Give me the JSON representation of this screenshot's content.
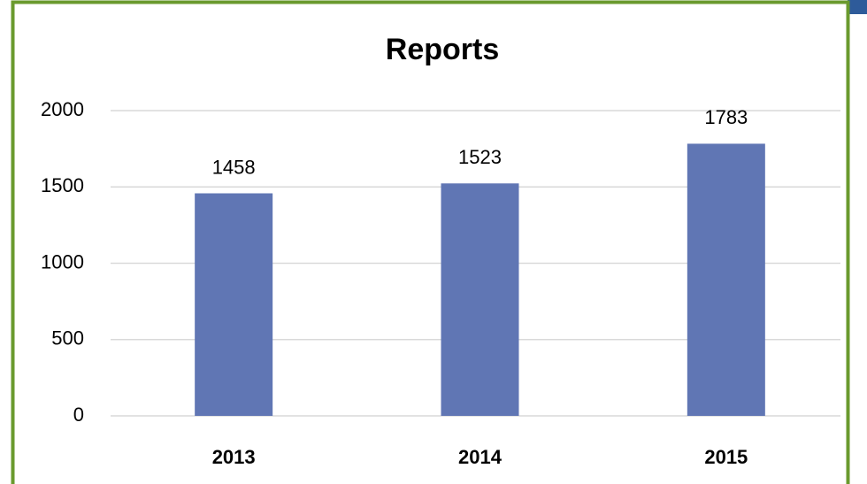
{
  "chart_data": {
    "type": "bar",
    "title": "Reports",
    "categories": [
      "2013",
      "2014",
      "2015"
    ],
    "values": [
      1458,
      1523,
      1783
    ],
    "color": "#6076b4",
    "ylim": [
      0,
      2000
    ],
    "yticks": [
      0,
      500,
      1000,
      1500,
      2000
    ],
    "grid": true,
    "data_labels": true
  }
}
